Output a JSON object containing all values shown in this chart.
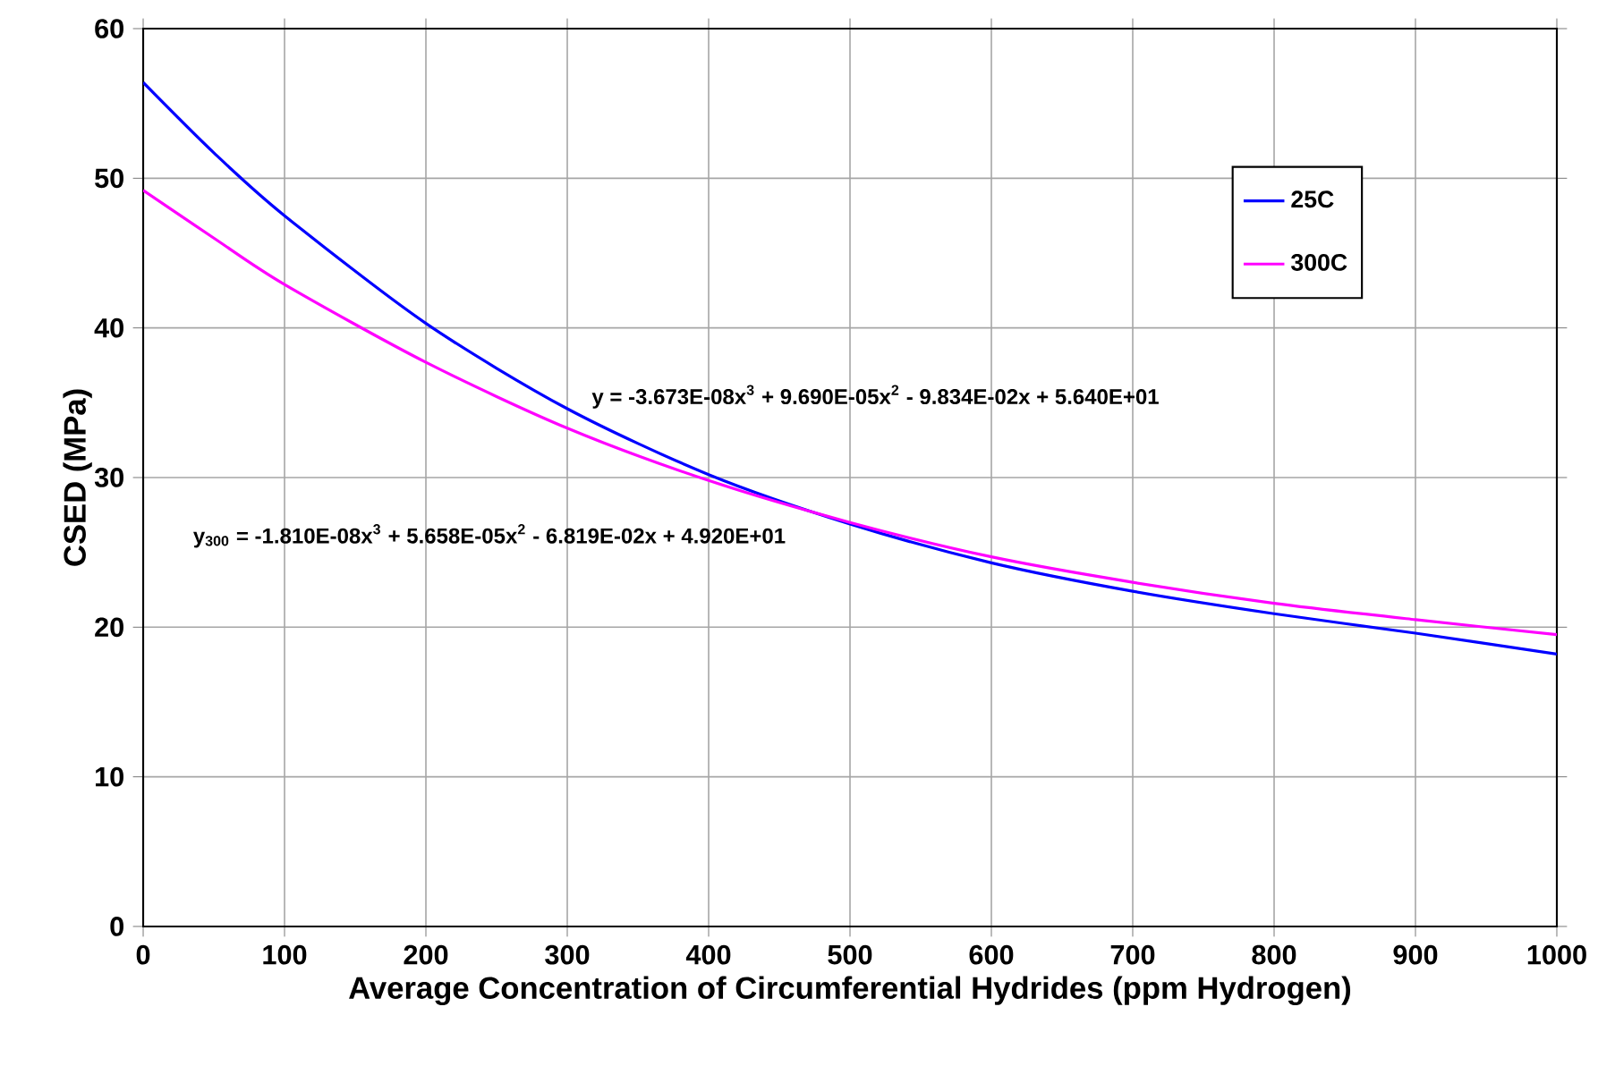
{
  "chart_data": {
    "type": "line",
    "xlabel": "Average Concentration of Circumferential Hydrides (ppm Hydrogen)",
    "ylabel": "CSED (MPa)",
    "x": [
      0,
      50,
      100,
      200,
      300,
      400,
      500,
      600,
      700,
      800,
      900,
      1000
    ],
    "series": [
      {
        "name": "25C",
        "color": "#0000ff",
        "values": [
          56.4,
          51.7,
          47.5,
          40.3,
          34.6,
          30.2,
          26.9,
          24.3,
          22.4,
          20.9,
          19.6,
          18.2
        ]
      },
      {
        "name": "300C",
        "color": "#ff00ff",
        "values": [
          49.2,
          46.0,
          42.9,
          37.7,
          33.3,
          29.8,
          27.0,
          24.7,
          23.0,
          21.6,
          20.5,
          19.5
        ]
      }
    ],
    "annotations": [
      "y = -3.673E-08x$^{3}$ + 9.690E-05x$^{2}$ - 9.834E-02x + 5.640E+01",
      "y$_{300}$ = -1.810E-08x$^{3}$ + 5.658E-05x$^{2}$ - 6.819E-02x + 4.920E+01"
    ],
    "xlim": [
      0,
      1000
    ],
    "ylim": [
      0,
      60
    ],
    "xticks": [
      0,
      100,
      200,
      300,
      400,
      500,
      600,
      700,
      800,
      900,
      1000
    ],
    "yticks": [
      0,
      10,
      20,
      30,
      40,
      50,
      60
    ],
    "grid": true,
    "legend": "top right",
    "marker": "none",
    "line_style": "solid"
  }
}
